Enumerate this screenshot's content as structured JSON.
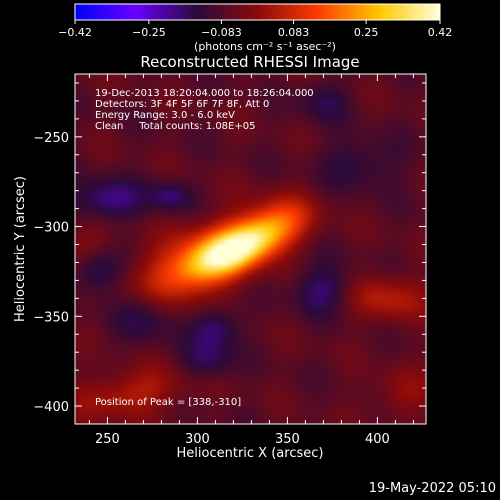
{
  "title": "Reconstructed RHESSI Image",
  "colorbar": {
    "min": -0.42,
    "max": 0.42,
    "ticks": [
      "-0.42",
      "-0.25",
      "-0.083",
      "0.083",
      "0.25",
      "0.42"
    ],
    "units": "(photons cm⁻² s⁻¹ asec⁻²)",
    "colormap": [
      "#0000ff",
      "#6a00ff",
      "#2a0a3a",
      "#8a0a0a",
      "#ff3c00",
      "#ffc800",
      "#ffffd8"
    ]
  },
  "annotations": {
    "time": "19-Dec-2013 18:20:04.000 to 18:26:04.000",
    "detectors": "Detectors: 3F 4F 5F 6F 7F 8F, Att 0",
    "energy": "Energy Range: 3.0 - 6.0 keV",
    "clean": "Clean     Total counts: 1.08E+05",
    "peak": "Position of Peak = [338,-310]"
  },
  "footer": "19-May-2022 05:10",
  "chart_data": {
    "type": "heatmap",
    "title": "Reconstructed RHESSI Image",
    "xlabel": "Heliocentric X (arcsec)",
    "ylabel": "Heliocentric Y (arcsec)",
    "xlim": [
      232,
      427
    ],
    "ylim": [
      -410,
      -215
    ],
    "xticks": [
      250,
      300,
      350,
      400
    ],
    "yticks": [
      -250,
      -300,
      -350,
      -400
    ],
    "zlim": [
      -0.42,
      0.42
    ],
    "peak": [
      338,
      -310
    ],
    "sources": [
      {
        "x": 322,
        "y": -312,
        "sx": 20,
        "sy": 8,
        "angle": 25,
        "amp": 0.42
      },
      {
        "x": 300,
        "y": -320,
        "sx": 26,
        "sy": 13,
        "angle": 25,
        "amp": 0.2
      },
      {
        "x": 345,
        "y": -297,
        "sx": 14,
        "sy": 10,
        "angle": 20,
        "amp": 0.12
      },
      {
        "x": 405,
        "y": -340,
        "sx": 16,
        "sy": 9,
        "angle": 0,
        "amp": 0.12
      },
      {
        "x": 263,
        "y": -393,
        "sx": 22,
        "sy": 9,
        "angle": 10,
        "amp": 0.12
      },
      {
        "x": 415,
        "y": -393,
        "sx": 14,
        "sy": 9,
        "angle": 0,
        "amp": 0.07
      },
      {
        "x": 238,
        "y": -310,
        "sx": 10,
        "sy": 8,
        "angle": 0,
        "amp": 0.07
      },
      {
        "x": 285,
        "y": -283,
        "sx": 8,
        "sy": 6,
        "angle": 0,
        "amp": -0.11
      },
      {
        "x": 250,
        "y": -285,
        "sx": 14,
        "sy": 8,
        "angle": 0,
        "amp": -0.13
      },
      {
        "x": 245,
        "y": -325,
        "sx": 9,
        "sy": 9,
        "angle": 0,
        "amp": -0.12
      },
      {
        "x": 310,
        "y": -356,
        "sx": 9,
        "sy": 8,
        "angle": 0,
        "amp": -0.12
      },
      {
        "x": 370,
        "y": -335,
        "sx": 12,
        "sy": 10,
        "angle": 0,
        "amp": -0.11
      },
      {
        "x": 305,
        "y": -375,
        "sx": 10,
        "sy": 8,
        "angle": 0,
        "amp": -0.1
      },
      {
        "x": 270,
        "y": -350,
        "sx": 12,
        "sy": 10,
        "angle": 0,
        "amp": -0.1
      },
      {
        "x": 390,
        "y": -265,
        "sx": 16,
        "sy": 10,
        "angle": 0,
        "amp": -0.08
      },
      {
        "x": 370,
        "y": -230,
        "sx": 10,
        "sy": 8,
        "angle": 0,
        "amp": -0.08
      }
    ],
    "background": -0.07
  }
}
